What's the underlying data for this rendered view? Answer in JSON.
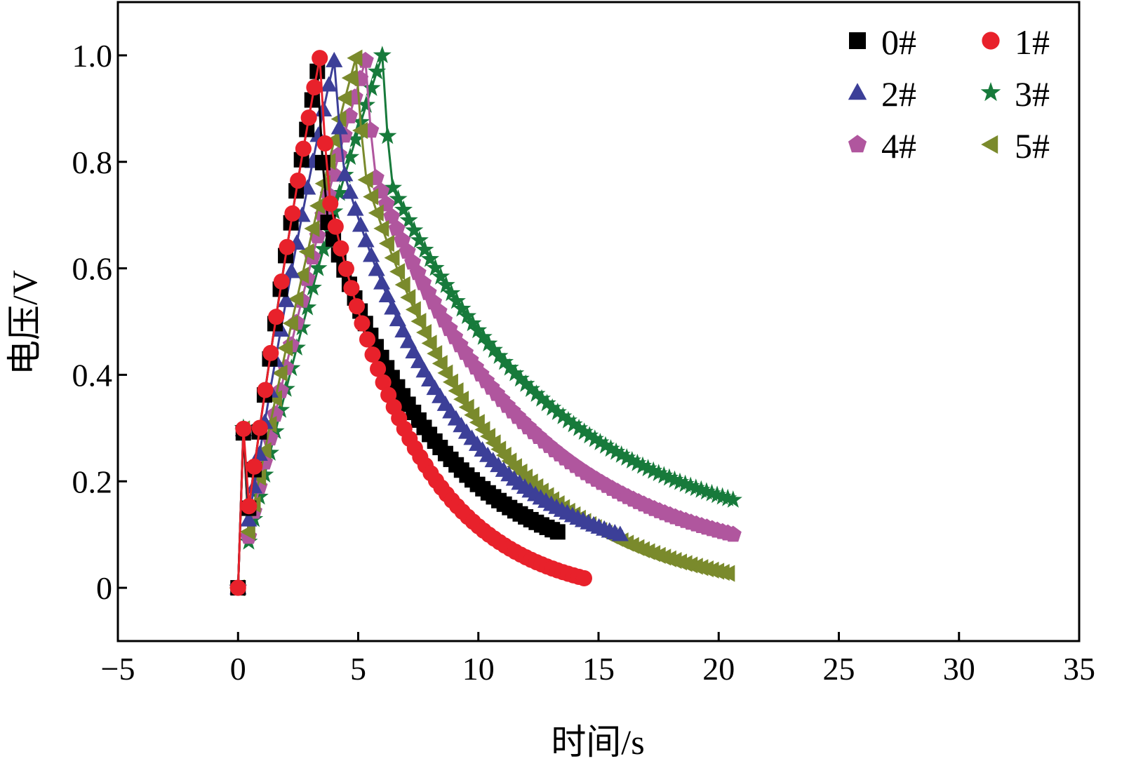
{
  "chart_data": {
    "type": "line",
    "xlabel": "时间/s",
    "ylabel": "电压/V",
    "xlim": [
      -5,
      35
    ],
    "ylim": [
      -0.1,
      1.1
    ],
    "x_ticks": [
      -5,
      0,
      5,
      10,
      15,
      20,
      25,
      30,
      35
    ],
    "x_tick_labels": [
      "−5",
      "0",
      "5",
      "10",
      "15",
      "20",
      "25",
      "30",
      "35"
    ],
    "y_ticks": [
      0,
      0.2,
      0.4,
      0.6,
      0.8,
      1.0
    ],
    "y_tick_labels": [
      "0",
      "0.2",
      "0.4",
      "0.6",
      "0.8",
      "1.0"
    ],
    "grid": false,
    "legend_position": "top-right",
    "series": [
      {
        "name": "0#",
        "color": "#000000",
        "marker": "square",
        "charge": {
          "t_end": 3.3,
          "v_peak": 0.97
        },
        "discharge": {
          "t_start": 3.3,
          "t_end": 13.3,
          "v_end": 0.105,
          "v_knee": 0.7,
          "tau": 4.8
        }
      },
      {
        "name": "1#",
        "color": "#e8212b",
        "marker": "circle",
        "charge": {
          "t_end": 3.4,
          "v_peak": 0.995
        },
        "discharge": {
          "t_start": 3.4,
          "t_end": 14.4,
          "v_end": 0.018,
          "v_knee": 0.74,
          "tau": 3.8
        }
      },
      {
        "name": "2#",
        "color": "#3c3f98",
        "marker": "triangle",
        "charge": {
          "t_end": 4.0,
          "v_peak": 0.99
        },
        "discharge": {
          "t_start": 4.0,
          "t_end": 15.9,
          "v_end": 0.1,
          "v_knee": 0.79,
          "tau": 5.0
        }
      },
      {
        "name": "3#",
        "color": "#177a3b",
        "marker": "star",
        "charge": {
          "t_end": 6.0,
          "v_peak": 1.0
        },
        "discharge": {
          "t_start": 6.0,
          "t_end": 20.6,
          "v_end": 0.165,
          "v_knee": 0.76,
          "tau": 7.2
        }
      },
      {
        "name": "4#",
        "color": "#b0569e",
        "marker": "pentagon",
        "charge": {
          "t_end": 5.3,
          "v_peak": 0.99
        },
        "discharge": {
          "t_start": 5.3,
          "t_end": 20.6,
          "v_end": 0.1,
          "v_knee": 0.78,
          "tau": 6.5
        }
      },
      {
        "name": "5#",
        "color": "#7a8a2c",
        "marker": "triangle-left",
        "charge": {
          "t_end": 4.9,
          "v_peak": 0.995
        },
        "discharge": {
          "t_start": 4.9,
          "t_end": 20.4,
          "v_end": 0.027,
          "v_knee": 0.78,
          "tau": 5.5
        }
      }
    ]
  }
}
